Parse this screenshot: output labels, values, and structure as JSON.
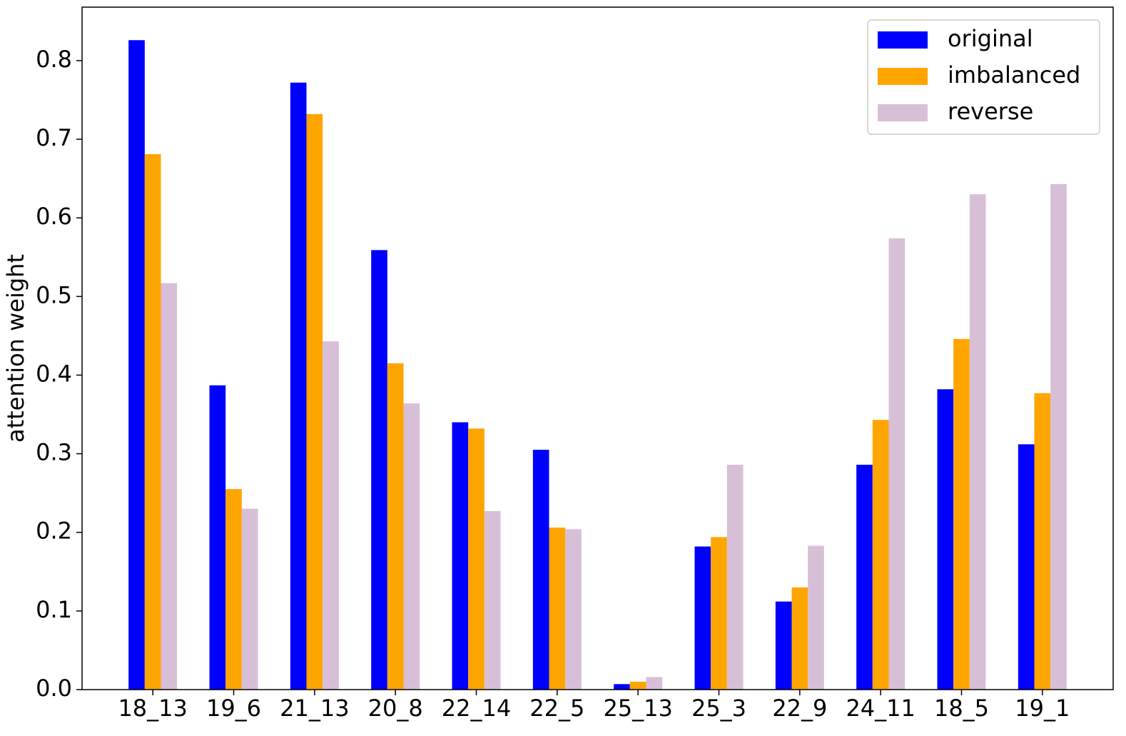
{
  "chart_data": {
    "type": "bar",
    "ylabel": "attention weight",
    "categories": [
      "18_13",
      "19_6",
      "21_13",
      "20_8",
      "22_14",
      "22_5",
      "25_13",
      "25_3",
      "22_9",
      "24_11",
      "18_5",
      "19_1"
    ],
    "series": [
      {
        "name": "original",
        "color": "#0000ff",
        "values": [
          0.826,
          0.387,
          0.772,
          0.559,
          0.34,
          0.305,
          0.007,
          0.182,
          0.112,
          0.286,
          0.382,
          0.312
        ]
      },
      {
        "name": "imbalanced",
        "color": "#ffa500",
        "values": [
          0.681,
          0.255,
          0.732,
          0.415,
          0.332,
          0.206,
          0.01,
          0.194,
          0.13,
          0.343,
          0.446,
          0.377
        ]
      },
      {
        "name": "reverse",
        "color": "#d8bfd8",
        "values": [
          0.517,
          0.23,
          0.443,
          0.364,
          0.227,
          0.204,
          0.016,
          0.286,
          0.183,
          0.574,
          0.63,
          0.643
        ]
      }
    ],
    "ylim": [
      0,
      0.868
    ],
    "yticks": [
      {
        "value": 0,
        "label": "0.0"
      },
      0.1,
      0.2,
      0.3,
      0.4,
      0.5,
      0.6,
      0.7,
      0.8
    ],
    "legend": "upper right"
  }
}
